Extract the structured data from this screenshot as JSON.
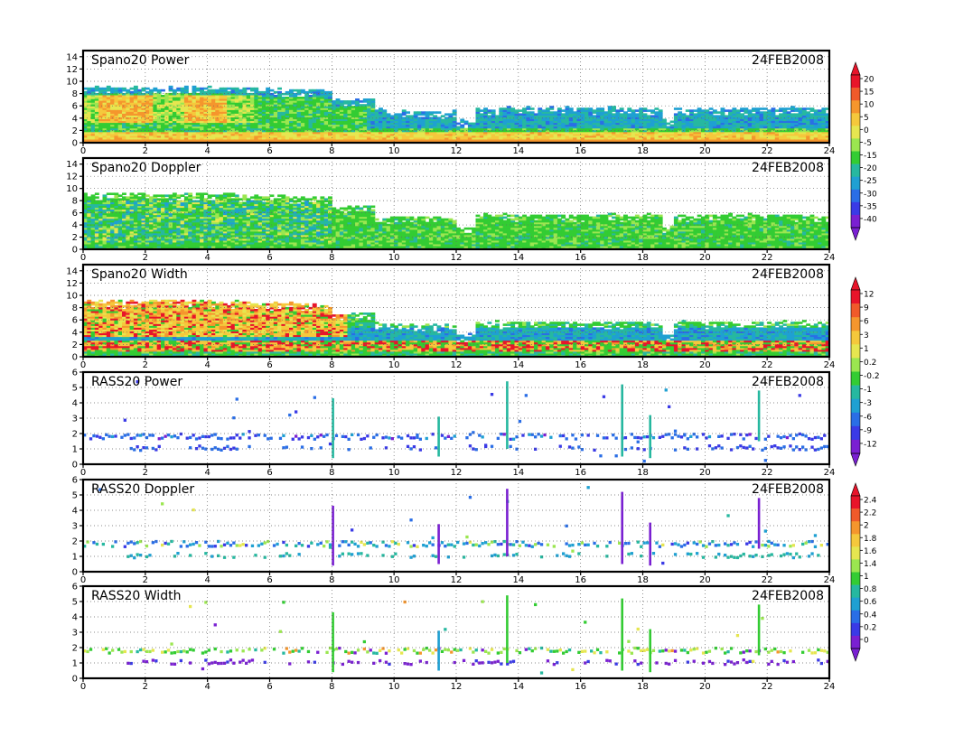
{
  "chart_data": [
    {
      "type": "heatmap",
      "title": "Spano20 Power",
      "date_label": "24FEB2008",
      "xlim": [
        0,
        24
      ],
      "ylim": [
        0,
        15
      ],
      "x_ticks": [
        0,
        2,
        4,
        6,
        8,
        10,
        12,
        14,
        16,
        18,
        20,
        22,
        24
      ],
      "y_ticks": [
        0,
        2,
        4,
        6,
        8,
        10,
        12,
        14
      ],
      "colorbar": "cb_power",
      "field": "spano_power"
    },
    {
      "type": "heatmap",
      "title": "Spano20 Doppler",
      "date_label": "24FEB2008",
      "xlim": [
        0,
        24
      ],
      "ylim": [
        0,
        15
      ],
      "x_ticks": [
        0,
        2,
        4,
        6,
        8,
        10,
        12,
        14,
        16,
        18,
        20,
        22,
        24
      ],
      "y_ticks": [
        0,
        2,
        4,
        6,
        8,
        10,
        12,
        14
      ],
      "colorbar": null,
      "field": "spano_doppler"
    },
    {
      "type": "heatmap",
      "title": "Spano20 Width",
      "date_label": "24FEB2008",
      "xlim": [
        0,
        24
      ],
      "ylim": [
        0,
        15
      ],
      "x_ticks": [
        0,
        2,
        4,
        6,
        8,
        10,
        12,
        14,
        16,
        18,
        20,
        22,
        24
      ],
      "y_ticks": [
        0,
        2,
        4,
        6,
        8,
        10,
        12,
        14
      ],
      "colorbar": "cb_width",
      "field": "spano_width"
    },
    {
      "type": "heatmap",
      "title": "RASS20 Power",
      "date_label": "24FEB2008",
      "xlim": [
        0,
        24
      ],
      "ylim": [
        0,
        6
      ],
      "x_ticks": [
        0,
        2,
        4,
        6,
        8,
        10,
        12,
        14,
        16,
        18,
        20,
        22,
        24
      ],
      "y_ticks": [
        0,
        1,
        2,
        3,
        4,
        5,
        6
      ],
      "colorbar": null,
      "field": "rass_power"
    },
    {
      "type": "heatmap",
      "title": "RASS20 Doppler",
      "date_label": "24FEB2008",
      "xlim": [
        0,
        24
      ],
      "ylim": [
        0,
        6
      ],
      "x_ticks": [
        0,
        2,
        4,
        6,
        8,
        10,
        12,
        14,
        16,
        18,
        20,
        22,
        24
      ],
      "y_ticks": [
        0,
        1,
        2,
        3,
        4,
        5,
        6
      ],
      "colorbar": "cb_rdop",
      "field": "rass_doppler"
    },
    {
      "type": "heatmap",
      "title": "RASS20 Width",
      "date_label": "24FEB2008",
      "xlim": [
        0,
        24
      ],
      "ylim": [
        0,
        6
      ],
      "x_ticks": [
        0,
        2,
        4,
        6,
        8,
        10,
        12,
        14,
        16,
        18,
        20,
        22,
        24
      ],
      "y_ticks": [
        0,
        1,
        2,
        3,
        4,
        5,
        6
      ],
      "colorbar": "cb_rwid",
      "field": "rass_width"
    }
  ],
  "colorbars": {
    "cb_power": {
      "labels": [
        "20",
        "15",
        "10",
        "5",
        "0",
        "-5",
        "-15",
        "-20",
        "-25",
        "-30",
        "-35",
        "-40"
      ],
      "colors": [
        "#e8142a",
        "#f05a2a",
        "#f5962d",
        "#f5c83c",
        "#e6e650",
        "#9be650",
        "#33cc33",
        "#26b8a0",
        "#1fa0d2",
        "#2a6ee6",
        "#3a3ae6",
        "#7a20d2"
      ]
    },
    "cb_width": {
      "labels": [
        "12",
        "9",
        "6",
        "3",
        "1",
        "0.2",
        "-0.2",
        "-1",
        "-3",
        "-6",
        "-9",
        "-12"
      ],
      "colors": [
        "#e8142a",
        "#f05a2a",
        "#f5962d",
        "#f5c83c",
        "#e6e650",
        "#9be650",
        "#33cc33",
        "#26b8a0",
        "#1fa0d2",
        "#2a6ee6",
        "#3a3ae6",
        "#7a20d2"
      ]
    },
    "cb_rdop": {
      "labels": [
        "2.4",
        "2.2",
        "2",
        "1.8",
        "1.6",
        "1.4",
        "1",
        "0.8",
        "0.6",
        "0.4",
        "0.2",
        "0"
      ],
      "colors": [
        "#e8142a",
        "#f05a2a",
        "#f5962d",
        "#f5c83c",
        "#e6e650",
        "#9be650",
        "#33cc33",
        "#26b8a0",
        "#1fa0d2",
        "#2a6ee6",
        "#3a3ae6",
        "#7a20d2"
      ]
    },
    "cb_rwid": {
      "labels": [],
      "colors": []
    }
  }
}
